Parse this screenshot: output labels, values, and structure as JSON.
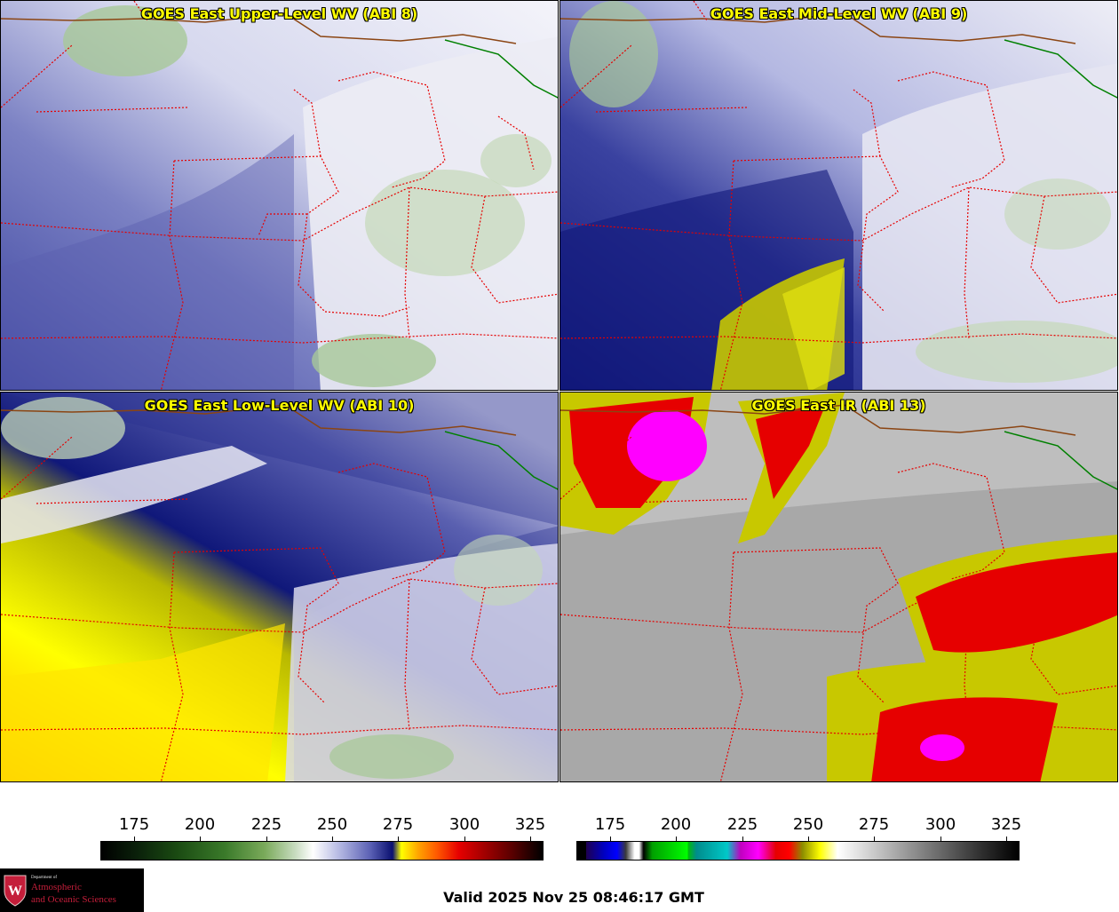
{
  "panels": [
    {
      "title": "GOES East Upper-Level WV (ABI 8)",
      "product": "upper-level-water-vapor"
    },
    {
      "title": "GOES East Mid-Level WV (ABI 9)",
      "product": "mid-level-water-vapor"
    },
    {
      "title": "GOES East Low-Level WV (ABI 10)",
      "product": "low-level-water-vapor"
    },
    {
      "title": "GOES East IR (ABI 13)",
      "product": "infrared"
    }
  ],
  "colorbars": {
    "water_vapor": {
      "ticks": [
        "175",
        "200",
        "225",
        "250",
        "275",
        "300",
        "325"
      ],
      "range": [
        160,
        330
      ],
      "colors": [
        "#000000",
        "#3a7a2a",
        "#ffffff",
        "#0a1070",
        "#ffff00",
        "#e60000",
        "#000000"
      ]
    },
    "infrared": {
      "ticks": [
        "175",
        "200",
        "225",
        "250",
        "275",
        "300",
        "325"
      ],
      "range": [
        160,
        330
      ],
      "colors": [
        "#1e0050",
        "#0000ff",
        "#00ff00",
        "#00c8c8",
        "#ff00ff",
        "#ff0000",
        "#ffff00",
        "#ffffff",
        "#000000"
      ]
    }
  },
  "logo": {
    "small_text": "Department of",
    "line1": "Atmospheric",
    "line2": "and Oceanic Sciences",
    "crest_letter": "W"
  },
  "valid_time": "Valid 2025 Nov 25 08:46:17 GMT",
  "colors": {
    "state_borders": "#e60000",
    "canada_border": "#8b4513",
    "water_boundary": "#008000",
    "title_text": "#ffff00"
  }
}
